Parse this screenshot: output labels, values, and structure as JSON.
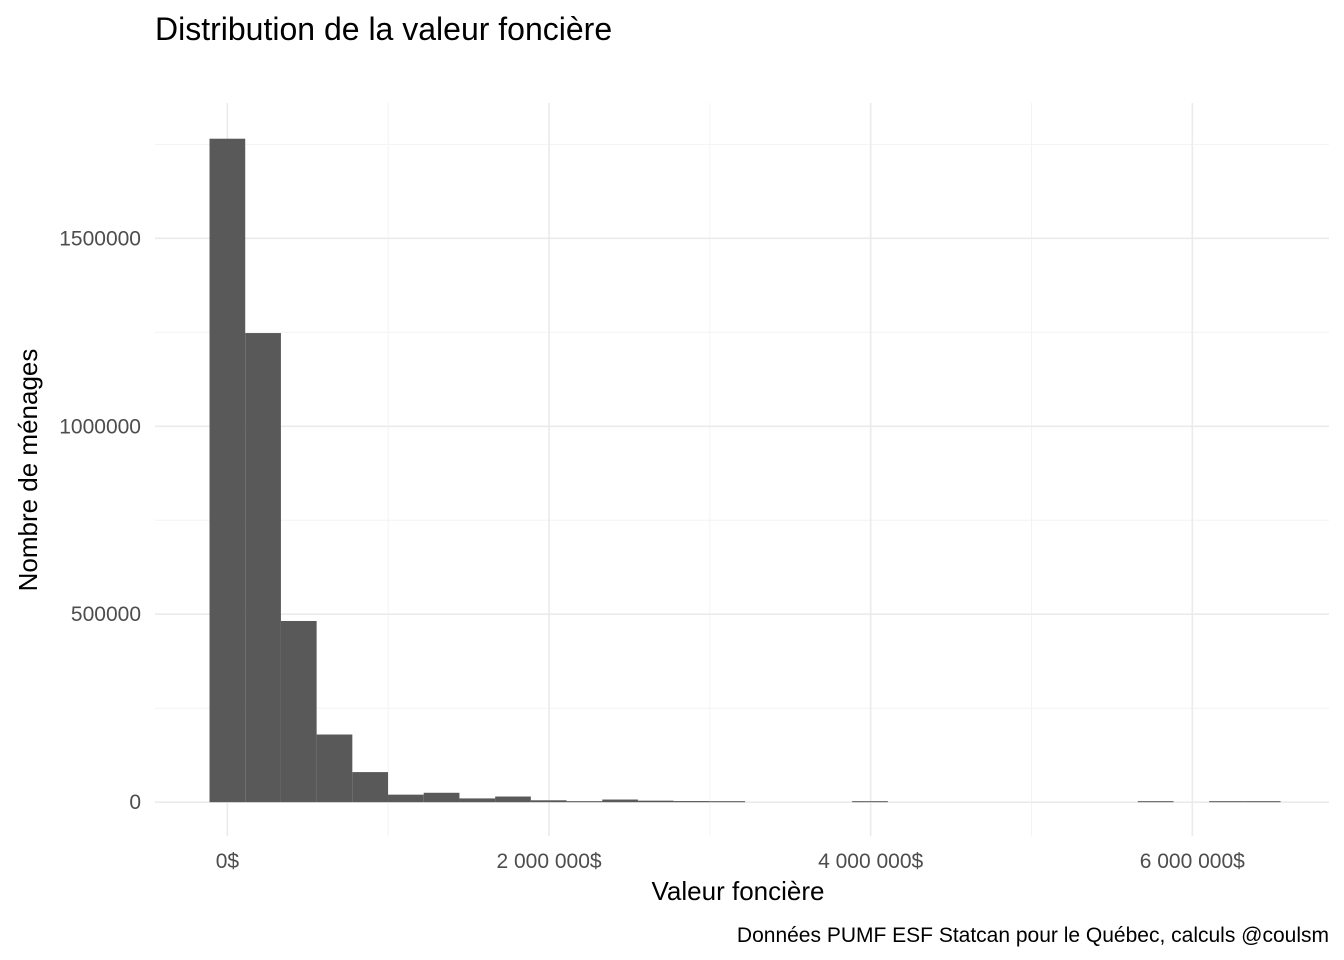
{
  "chart_data": {
    "type": "bar",
    "title": "Distribution de la valeur foncière",
    "xlabel": "Valeur foncière",
    "ylabel": "Nombre de ménages",
    "caption": "Données PUMF ESF Statcan pour le Québec, calculs @coulsm",
    "bar_color": "#595959",
    "grid": true,
    "xlim": [
      -450000,
      6850000
    ],
    "ylim": [
      -90000,
      1860000
    ],
    "x_ticks": [
      {
        "value": 0,
        "label": "0$"
      },
      {
        "value": 2000000,
        "label": "2 000 000$"
      },
      {
        "value": 4000000,
        "label": "4 000 000$"
      },
      {
        "value": 6000000,
        "label": "6 000 000$"
      }
    ],
    "x_minor_ticks": [
      1000000,
      3000000,
      5000000
    ],
    "y_ticks": [
      {
        "value": 0,
        "label": "0"
      },
      {
        "value": 500000,
        "label": "500000"
      },
      {
        "value": 1000000,
        "label": "1000000"
      },
      {
        "value": 1500000,
        "label": "1500000"
      }
    ],
    "y_minor_ticks": [
      250000,
      750000,
      1250000,
      1750000
    ],
    "bin_width": 222000,
    "bins": [
      {
        "x": 0,
        "count": 1765000
      },
      {
        "x": 222000,
        "count": 1248000
      },
      {
        "x": 444000,
        "count": 482000
      },
      {
        "x": 666000,
        "count": 180000
      },
      {
        "x": 888000,
        "count": 80000
      },
      {
        "x": 1110000,
        "count": 20000
      },
      {
        "x": 1332000,
        "count": 25000
      },
      {
        "x": 1554000,
        "count": 10000
      },
      {
        "x": 1776000,
        "count": 15000
      },
      {
        "x": 1998000,
        "count": 5000
      },
      {
        "x": 2220000,
        "count": 2000
      },
      {
        "x": 2442000,
        "count": 7000
      },
      {
        "x": 2664000,
        "count": 4000
      },
      {
        "x": 2886000,
        "count": 3000
      },
      {
        "x": 3108000,
        "count": 1500
      },
      {
        "x": 3996000,
        "count": 1500
      },
      {
        "x": 5772000,
        "count": 1000
      },
      {
        "x": 6216000,
        "count": 1000
      },
      {
        "x": 6438000,
        "count": 1000
      }
    ]
  }
}
